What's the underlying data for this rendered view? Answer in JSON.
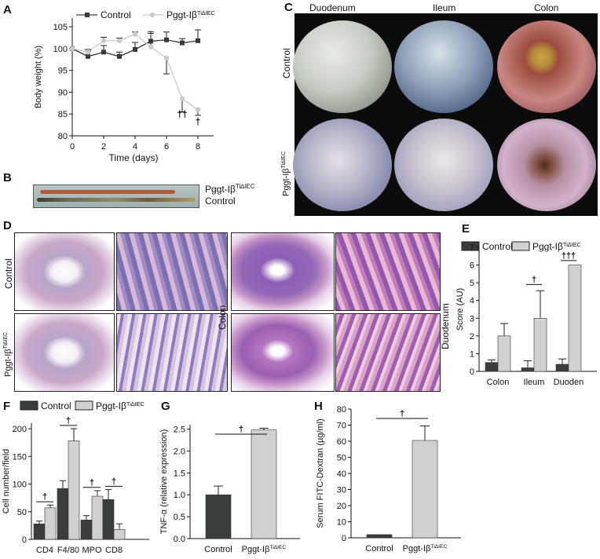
{
  "panels": {
    "A": "A",
    "B": "B",
    "C": "C",
    "D": "D",
    "E": "E",
    "F": "F",
    "G": "G",
    "H": "H"
  },
  "legend": {
    "control": "Control",
    "pggt": "Pggt-Iβ",
    "sup": "Ti∆IEC"
  },
  "colors": {
    "control_line": "#3a3a3a",
    "pggt_line": "#c9cbcb",
    "control_bar": "#3a3d3d",
    "pggt_bar": "#cfd2d0",
    "bg": "#ffffff"
  },
  "panelB": {
    "label_pggt": "Pggt-Iβ",
    "label_sup": "Ti∆IEC",
    "label_control": "Control"
  },
  "panelC": {
    "cols": [
      "Duodenum",
      "Ileum",
      "Colon"
    ],
    "rows": [
      "Control",
      "Pggt-Iβ"
    ],
    "row_sup": "Ti∆IEC"
  },
  "panelD": {
    "rows": [
      "Control",
      "Pggt-Iβ"
    ],
    "row_sup": "Ti∆IEC",
    "colon": "Colon",
    "duodenum": "Duodenum"
  },
  "chart_data": [
    {
      "type": "line",
      "xlabel": "Time (days)",
      "ylabel": "Body weight (%)",
      "xlim": [
        0,
        9
      ],
      "ylim": [
        80,
        107
      ],
      "xticks": [
        0,
        2,
        4,
        6,
        8
      ],
      "yticks": [
        80,
        85,
        90,
        95,
        100,
        105
      ],
      "series": [
        {
          "name": "Control",
          "x": [
            0,
            1,
            2,
            3,
            4,
            5,
            6,
            7,
            8
          ],
          "values": [
            100,
            98.2,
            99.2,
            98.2,
            99.8,
            101.7,
            102,
            101.3,
            101.8
          ],
          "err": [
            0,
            1.2,
            1.5,
            1,
            1.6,
            1.8,
            1.8,
            1,
            2.5
          ]
        },
        {
          "name": "Pggt-Iβ",
          "x": [
            0,
            1,
            2,
            3,
            4,
            5,
            6,
            7,
            8
          ],
          "values": [
            100,
            99.2,
            101.8,
            101.8,
            103.3,
            100.4,
            97.8,
            88.5,
            86
          ],
          "err": [
            0,
            0.6,
            0.8,
            0.6,
            0.5,
            3.5,
            3.6,
            3,
            1.3
          ]
        }
      ],
      "annotations": [
        "††",
        "†"
      ]
    },
    {
      "type": "bar",
      "ylabel": "Score (AU)",
      "ylim": [
        0,
        7
      ],
      "yticks": [
        0,
        1,
        2,
        3,
        4,
        5,
        6,
        7
      ],
      "categories": [
        "Colon",
        "Ileum",
        "Duoden"
      ],
      "series": [
        {
          "name": "Control",
          "values": [
            0.5,
            0.2,
            0.4
          ],
          "err": [
            0.15,
            0.4,
            0.3
          ]
        },
        {
          "name": "Pggt-Iβ",
          "values": [
            2,
            3,
            6
          ],
          "err": [
            0.7,
            1.55,
            0
          ]
        }
      ],
      "annotations": [
        "†",
        "†††"
      ]
    },
    {
      "type": "bar",
      "ylabel": "Cell number/field",
      "ylim": [
        0,
        210
      ],
      "yticks": [
        0,
        50,
        100,
        150,
        200
      ],
      "categories": [
        "CD4",
        "F4/80",
        "MPO",
        "CD8"
      ],
      "series": [
        {
          "name": "Control",
          "values": [
            28,
            92,
            35,
            72
          ],
          "err": [
            5,
            14,
            8,
            18
          ]
        },
        {
          "name": "Pggt-Iβ",
          "values": [
            57,
            178,
            78,
            18
          ],
          "err": [
            5,
            22,
            10,
            10
          ]
        }
      ],
      "annotations": [
        "†",
        "†",
        "†",
        "†"
      ]
    },
    {
      "type": "bar",
      "ylabel": "TNF-α (relative expression)",
      "ylim": [
        0,
        2.6
      ],
      "yticks": [
        0,
        0.5,
        1.0,
        1.5,
        2.0,
        2.5
      ],
      "ytick_labels": [
        "0.0",
        "0.5",
        "1.0",
        "1.5",
        "2.0",
        "2.5"
      ],
      "categories": [
        "Control",
        "Pggt-Iβ"
      ],
      "category_sup": [
        "",
        "Ti∆IEC"
      ],
      "values": [
        1.0,
        2.48
      ],
      "err": [
        0.2,
        0.04
      ],
      "annotations": [
        "†"
      ]
    },
    {
      "type": "bar",
      "ylabel": "Serum FITC-Dextran (µg/ml)",
      "ylim": [
        0,
        80
      ],
      "yticks": [
        0,
        10,
        20,
        30,
        40,
        50,
        60,
        70,
        80
      ],
      "categories": [
        "Control",
        "Pggt-Iβ"
      ],
      "category_sup": [
        "",
        "Ti∆IEC"
      ],
      "values": [
        2,
        60.5
      ],
      "err": [
        0,
        9
      ],
      "annotations": [
        "†"
      ]
    }
  ]
}
